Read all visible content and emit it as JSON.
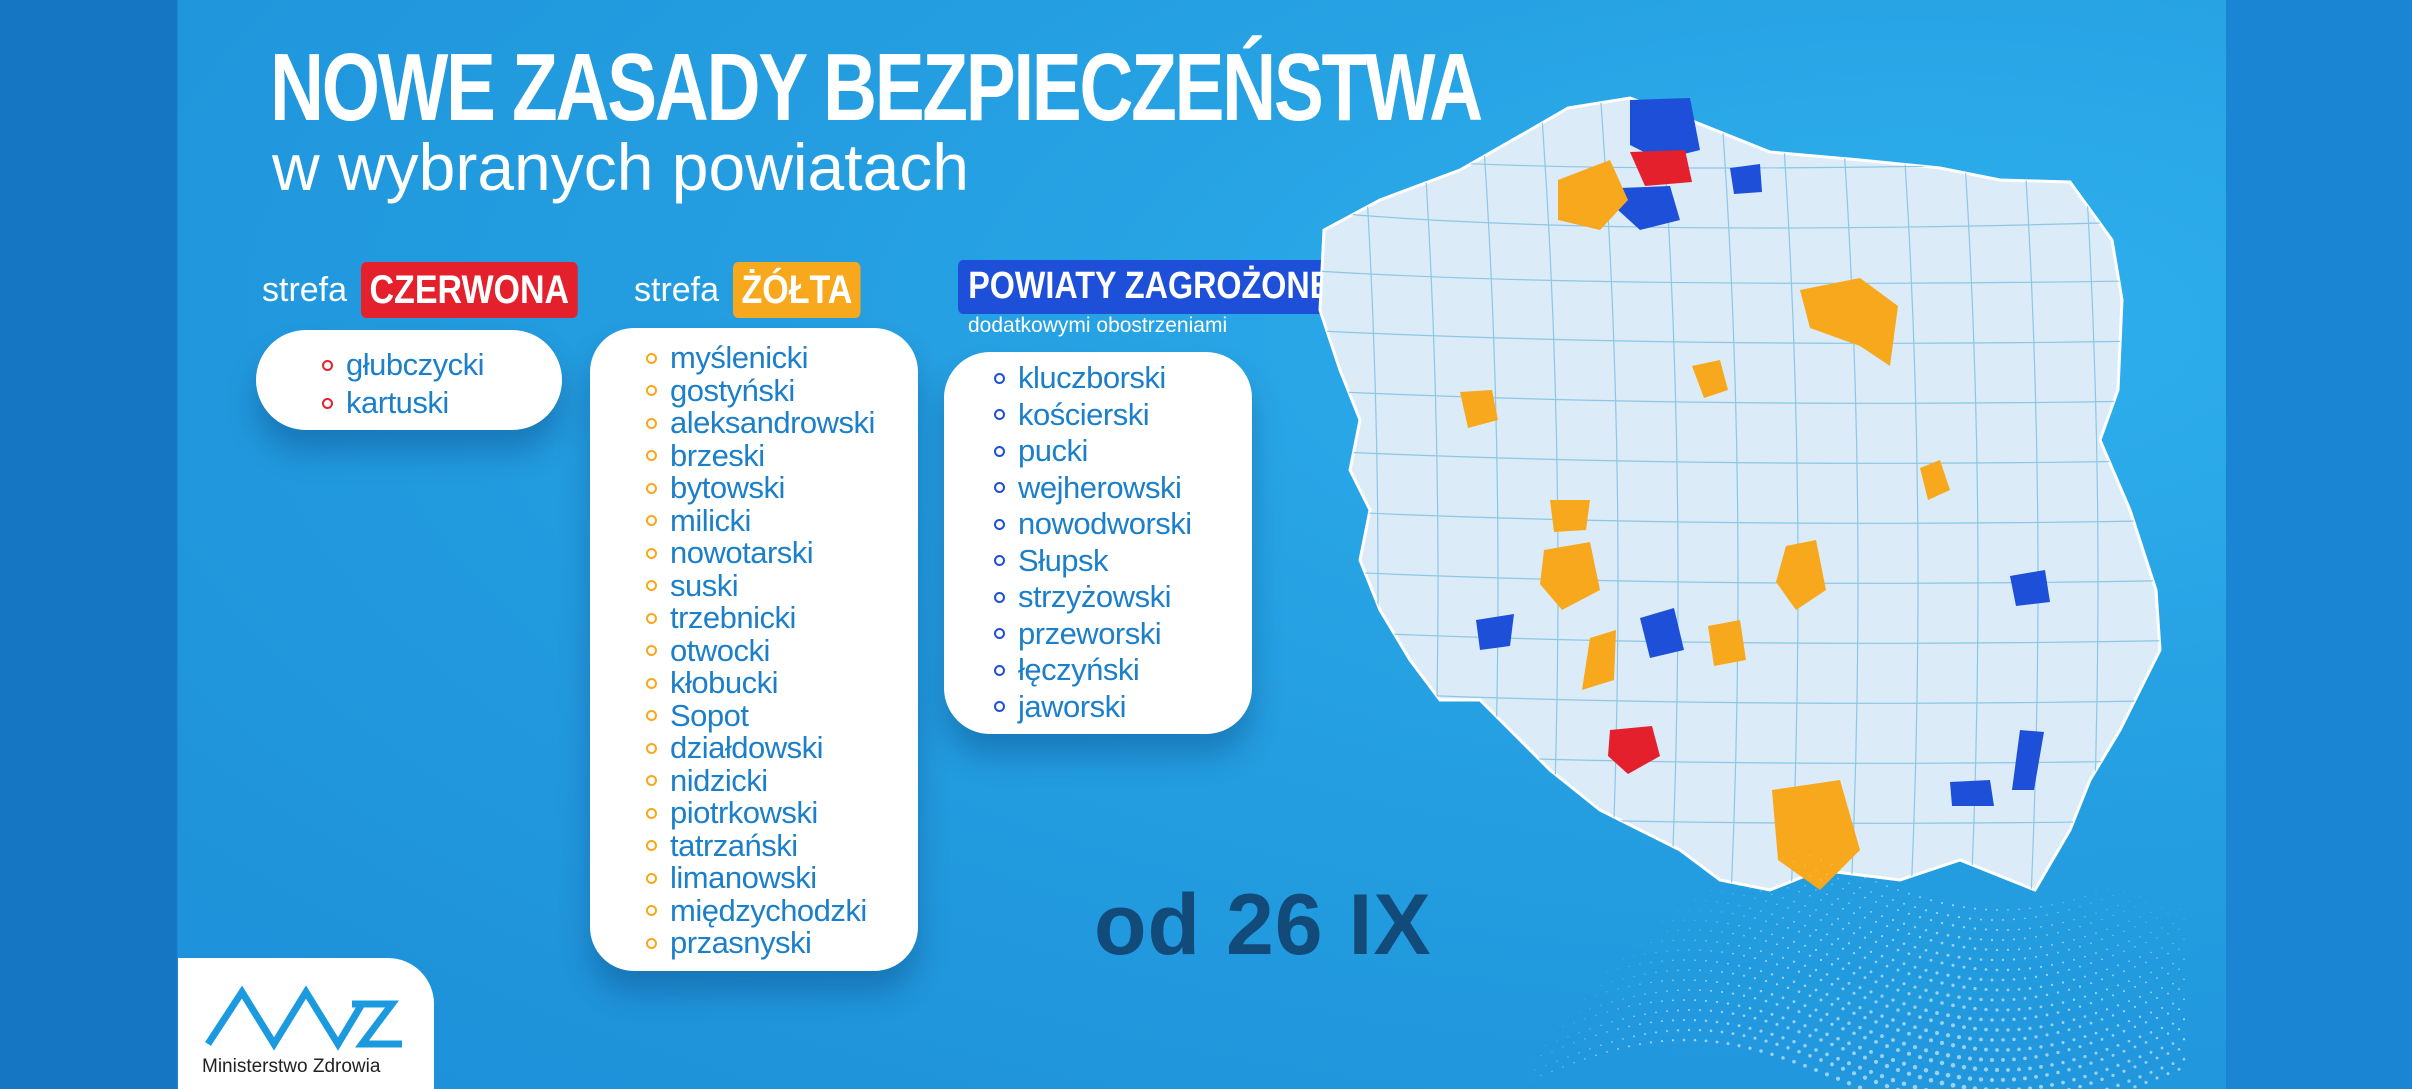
{
  "header": {
    "title": "NOWE ZASADY BEZPIECZEŃSTWA",
    "subtitle": "w wybranych powiatach"
  },
  "red_zone": {
    "prefix": "strefa",
    "label": "CZERWONA",
    "items": [
      "głubczycki",
      "kartuski"
    ]
  },
  "yellow_zone": {
    "prefix": "strefa",
    "label": "ŻÓŁTA",
    "items": [
      "myślenicki",
      "gostyński",
      "aleksandrowski",
      "brzeski",
      "bytowski",
      "milicki",
      "nowotarski",
      "suski",
      "trzebnicki",
      "otwocki",
      "kłobucki",
      "Sopot",
      "działdowski",
      "nidzicki",
      "piotrkowski",
      "tatrzański",
      "limanowski",
      "międzychodzki",
      "przasnyski"
    ]
  },
  "threatened": {
    "label": "POWIATY ZAGROŻONE",
    "note": "dodatkowymi obostrzeniami",
    "items": [
      "kluczborski",
      "kościerski",
      "pucki",
      "wejherowski",
      "nowodworski",
      "Słupsk",
      "strzyżowski",
      "przeworski",
      "łęczyński",
      "jaworski"
    ]
  },
  "date": "od 26 IX",
  "logo": {
    "text": "Ministerstwo Zdrowia"
  },
  "colors": {
    "red": "#e3202b",
    "yellow": "#f7a81d",
    "blue": "#1e4fd8",
    "map_fill": "#dcebf8",
    "background": "#25a0e2"
  }
}
